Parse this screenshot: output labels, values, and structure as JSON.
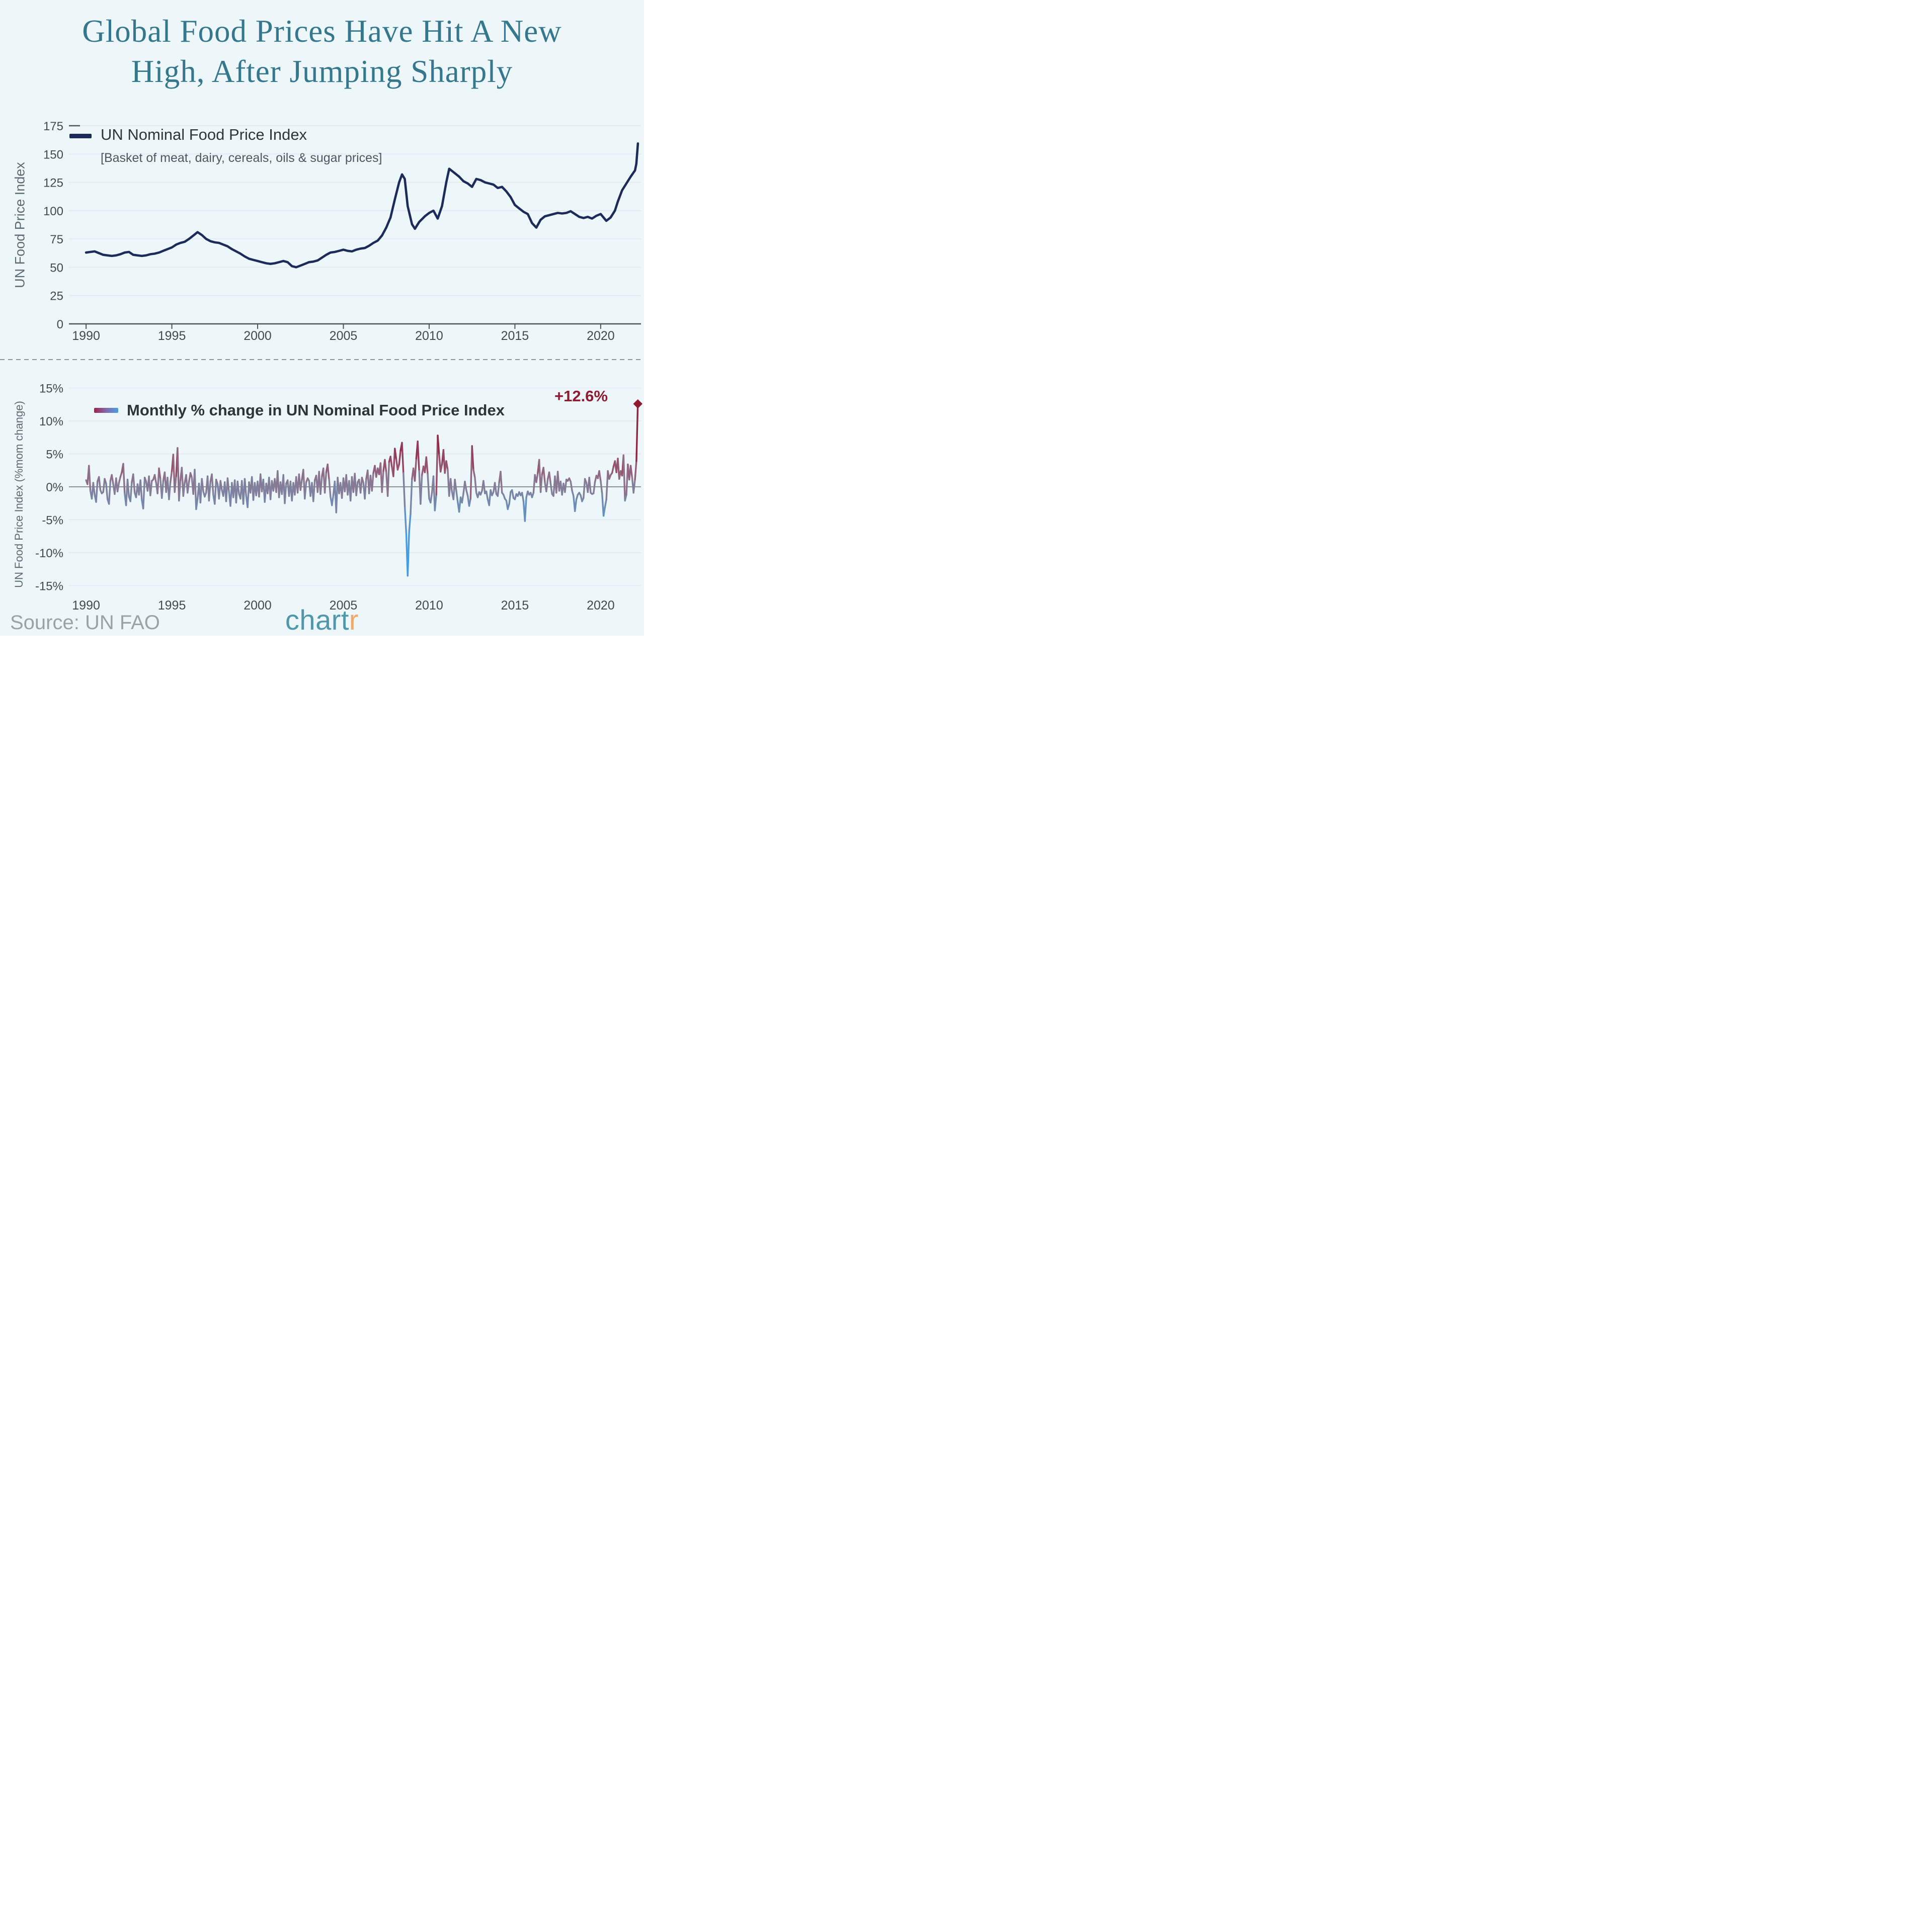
{
  "title": {
    "line1": "Global Food Prices Have Hit A New",
    "line2": "High, After Jumping Sharply",
    "color": "#35778c"
  },
  "footer": {
    "source_label": "Source: UN FAO",
    "logo": {
      "part1": "chart",
      "part2": "r",
      "color1": "#4f97ab",
      "color2": "#f2a868"
    }
  },
  "chart_data": [
    {
      "type": "line",
      "name": "un-nominal-food-price-index",
      "legend": {
        "label": "UN Nominal Food Price Index",
        "sublabel": "[Basket of meat, dairy, cereals, oils & sugar prices]",
        "swatch_color": "#1d2b5a"
      },
      "ylabel": "UN Food Price Index",
      "line_color": "#1d2b5a",
      "xlim": [
        1989.0,
        2022.35
      ],
      "ylim": [
        0,
        175
      ],
      "y_ticks": [
        0,
        25,
        50,
        75,
        100,
        125,
        150,
        175
      ],
      "x_ticks": [
        1990,
        1995,
        2000,
        2005,
        2010,
        2015,
        2020
      ],
      "grid": true,
      "points": [
        [
          1990.0,
          63
        ],
        [
          1990.25,
          63.5
        ],
        [
          1990.5,
          64
        ],
        [
          1990.75,
          62.5
        ],
        [
          1991.0,
          61
        ],
        [
          1991.25,
          60.5
        ],
        [
          1991.5,
          60
        ],
        [
          1991.75,
          60.5
        ],
        [
          1992.0,
          61.5
        ],
        [
          1992.25,
          63
        ],
        [
          1992.5,
          63.5
        ],
        [
          1992.75,
          61
        ],
        [
          1993.0,
          60.5
        ],
        [
          1993.25,
          60
        ],
        [
          1993.5,
          60.5
        ],
        [
          1993.75,
          61.5
        ],
        [
          1994.0,
          62
        ],
        [
          1994.25,
          63
        ],
        [
          1994.5,
          64.5
        ],
        [
          1994.75,
          66
        ],
        [
          1995.0,
          67.5
        ],
        [
          1995.25,
          70
        ],
        [
          1995.5,
          71.5
        ],
        [
          1995.75,
          72.5
        ],
        [
          1996.0,
          75
        ],
        [
          1996.25,
          78
        ],
        [
          1996.5,
          81
        ],
        [
          1996.75,
          78.5
        ],
        [
          1997.0,
          75
        ],
        [
          1997.25,
          73
        ],
        [
          1997.5,
          72
        ],
        [
          1997.75,
          71.5
        ],
        [
          1998.0,
          70
        ],
        [
          1998.25,
          68.5
        ],
        [
          1998.5,
          66
        ],
        [
          1998.75,
          64
        ],
        [
          1999.0,
          62
        ],
        [
          1999.25,
          59.5
        ],
        [
          1999.5,
          57.5
        ],
        [
          1999.75,
          56.5
        ],
        [
          2000.0,
          55.5
        ],
        [
          2000.25,
          54.5
        ],
        [
          2000.5,
          53.5
        ],
        [
          2000.75,
          53
        ],
        [
          2001.0,
          53.5
        ],
        [
          2001.25,
          54.5
        ],
        [
          2001.5,
          55.5
        ],
        [
          2001.75,
          54.5
        ],
        [
          2002.0,
          51
        ],
        [
          2002.25,
          50
        ],
        [
          2002.5,
          51.5
        ],
        [
          2002.75,
          53
        ],
        [
          2003.0,
          54.5
        ],
        [
          2003.25,
          55
        ],
        [
          2003.5,
          56
        ],
        [
          2003.75,
          58.5
        ],
        [
          2004.0,
          61
        ],
        [
          2004.25,
          63
        ],
        [
          2004.5,
          63.5
        ],
        [
          2004.75,
          64.5
        ],
        [
          2005.0,
          65.5
        ],
        [
          2005.25,
          64.5
        ],
        [
          2005.5,
          64
        ],
        [
          2005.75,
          65.5
        ],
        [
          2006.0,
          66.5
        ],
        [
          2006.25,
          67
        ],
        [
          2006.5,
          69
        ],
        [
          2006.75,
          71.5
        ],
        [
          2007.0,
          73.5
        ],
        [
          2007.25,
          78
        ],
        [
          2007.5,
          85
        ],
        [
          2007.75,
          94
        ],
        [
          2008.0,
          110
        ],
        [
          2008.25,
          125
        ],
        [
          2008.42,
          132
        ],
        [
          2008.58,
          128
        ],
        [
          2008.75,
          104
        ],
        [
          2009.0,
          88
        ],
        [
          2009.17,
          84
        ],
        [
          2009.42,
          90
        ],
        [
          2009.75,
          95
        ],
        [
          2010.0,
          98
        ],
        [
          2010.25,
          100
        ],
        [
          2010.5,
          93
        ],
        [
          2010.75,
          104
        ],
        [
          2011.0,
          125
        ],
        [
          2011.17,
          137
        ],
        [
          2011.42,
          134
        ],
        [
          2011.75,
          130
        ],
        [
          2012.0,
          126
        ],
        [
          2012.25,
          124
        ],
        [
          2012.5,
          121
        ],
        [
          2012.75,
          128
        ],
        [
          2013.0,
          127
        ],
        [
          2013.25,
          125
        ],
        [
          2013.5,
          124
        ],
        [
          2013.75,
          123
        ],
        [
          2014.0,
          120
        ],
        [
          2014.25,
          121
        ],
        [
          2014.5,
          117
        ],
        [
          2014.75,
          112
        ],
        [
          2015.0,
          105
        ],
        [
          2015.25,
          102
        ],
        [
          2015.5,
          99
        ],
        [
          2015.75,
          97
        ],
        [
          2016.0,
          89
        ],
        [
          2016.25,
          85
        ],
        [
          2016.5,
          92
        ],
        [
          2016.75,
          95
        ],
        [
          2017.0,
          96
        ],
        [
          2017.25,
          97
        ],
        [
          2017.5,
          98
        ],
        [
          2017.75,
          97.5
        ],
        [
          2018.0,
          98
        ],
        [
          2018.25,
          99.5
        ],
        [
          2018.5,
          97
        ],
        [
          2018.75,
          94.5
        ],
        [
          2019.0,
          93.5
        ],
        [
          2019.25,
          94.5
        ],
        [
          2019.5,
          93
        ],
        [
          2019.75,
          95.5
        ],
        [
          2020.0,
          97
        ],
        [
          2020.33,
          91
        ],
        [
          2020.58,
          94
        ],
        [
          2020.83,
          100
        ],
        [
          2021.0,
          108
        ],
        [
          2021.25,
          118
        ],
        [
          2021.5,
          124
        ],
        [
          2021.75,
          130
        ],
        [
          2022.0,
          135.5
        ],
        [
          2022.08,
          141.4
        ],
        [
          2022.17,
          159.3
        ]
      ]
    },
    {
      "type": "line-gradient",
      "name": "monthly-pct-change",
      "legend": {
        "label": "Monthly % change in UN Nominal Food Price Index"
      },
      "ylabel": "UN Food Price Index (%mom change)",
      "annotation": {
        "text": "+12.6%",
        "color": "#8e1b2f",
        "x": 2022.17,
        "y": 12.6
      },
      "xlim": [
        1989.0,
        2022.35
      ],
      "ylim": [
        -16.5,
        16.5
      ],
      "y_ticks": [
        15,
        10,
        5,
        0,
        -5,
        -10,
        -15
      ],
      "x_ticks": [
        1990,
        1995,
        2000,
        2005,
        2010,
        2015,
        2020
      ],
      "grid": true,
      "zero_line": true,
      "x0": 1990,
      "dx": 0.0833333,
      "color_stops": [
        {
          "v": -14,
          "c": "#35a3ef"
        },
        {
          "v": -8,
          "c": "#4d9ade"
        },
        {
          "v": -4,
          "c": "#6292c4"
        },
        {
          "v": -1.5,
          "c": "#7787a8"
        },
        {
          "v": 0,
          "c": "#847d99"
        },
        {
          "v": 1.5,
          "c": "#8f6f88"
        },
        {
          "v": 3.5,
          "c": "#964d68"
        },
        {
          "v": 6,
          "c": "#8f2b49"
        },
        {
          "v": 13,
          "c": "#881f36"
        }
      ],
      "values": [
        1.0,
        0.4,
        3.2,
        -0.6,
        -1.8,
        0.6,
        -1.2,
        -2.3,
        0.8,
        1.5,
        -0.5,
        -1.0,
        -0.8,
        1.2,
        0.5,
        -1.9,
        -2.6,
        0.9,
        1.8,
        0.4,
        -1.1,
        1.3,
        -0.7,
        0.6,
        1.5,
        2.2,
        3.5,
        -1.0,
        -2.8,
        1.1,
        -1.5,
        -2.2,
        0.7,
        1.9,
        -0.9,
        -1.6,
        0.4,
        -1.2,
        1.0,
        -2.0,
        -3.3,
        1.4,
        0.8,
        -0.6,
        1.6,
        -1.3,
        0.9,
        1.1,
        1.8,
        0.6,
        -1.0,
        2.8,
        1.2,
        -1.7,
        0.9,
        2.2,
        -0.8,
        1.4,
        -1.9,
        0.7,
        2.4,
        4.9,
        -0.8,
        1.6,
        5.9,
        -2.1,
        1.0,
        2.9,
        -1.4,
        0.6,
        1.8,
        -0.9,
        0.8,
        2.1,
        1.4,
        -1.1,
        2.6,
        -3.4,
        -1.8,
        0.5,
        -2.4,
        1.2,
        -0.7,
        -1.5,
        -0.9,
        1.6,
        -2.1,
        0.8,
        1.9,
        -1.2,
        -2.6,
        1.1,
        0.4,
        -1.8,
        0.9,
        -0.5,
        -1.4,
        0.7,
        -2.2,
        1.3,
        -0.8,
        -2.9,
        0.6,
        -1.6,
        1.0,
        -2.4,
        0.8,
        -1.1,
        -1.8,
        0.9,
        -2.6,
        1.2,
        -1.4,
        -3.1,
        0.7,
        -0.9,
        1.5,
        -2.0,
        0.6,
        -1.3,
        0.8,
        -1.5,
        1.9,
        -0.7,
        1.1,
        -2.3,
        0.5,
        -1.0,
        1.4,
        -1.9,
        0.9,
        -0.6,
        1.2,
        -0.8,
        2.4,
        -1.6,
        0.7,
        -1.1,
        1.8,
        -2.5,
        0.5,
        1.0,
        -1.4,
        0.8,
        -2.1,
        0.6,
        -1.2,
        1.5,
        -0.9,
        1.9,
        -0.5,
        1.1,
        2.6,
        -1.8,
        0.7,
        1.3,
        0.9,
        -1.4,
        0.6,
        -2.2,
        1.0,
        1.7,
        -0.8,
        2.3,
        -1.1,
        1.6,
        2.8,
        -0.9,
        2.2,
        3.4,
        1.1,
        -1.5,
        -2.8,
        -1.2,
        0.8,
        -3.9,
        1.4,
        -1.0,
        0.6,
        -1.7,
        1.3,
        -0.7,
        1.8,
        -1.2,
        0.9,
        -2.1,
        1.5,
        -0.8,
        2.0,
        -1.3,
        0.7,
        1.1,
        -0.9,
        1.4,
        0.6,
        -1.8,
        1.2,
        2.5,
        -1.0,
        1.7,
        -0.6,
        2.1,
        3.2,
        1.5,
        2.8,
        1.9,
        3.6,
        -0.8,
        2.4,
        4.1,
        2.2,
        -1.4,
        3.8,
        4.6,
        2.9,
        1.6,
        5.8,
        4.2,
        2.6,
        3.4,
        5.5,
        6.7,
        2.1,
        -3.2,
        -7.2,
        -13.5,
        -6.8,
        -4.1,
        1.2,
        2.8,
        0.9,
        4.3,
        6.9,
        2.4,
        -2.6,
        1.8,
        3.1,
        2.2,
        4.5,
        1.9,
        -1.8,
        -2.4,
        -0.9,
        1.6,
        -3.6,
        -1.2,
        7.8,
        4.9,
        2.3,
        3.4,
        5.6,
        2.1,
        3.9,
        2.6,
        -1.4,
        1.2,
        -0.8,
        -1.9,
        1.1,
        -0.6,
        -2.3,
        -3.8,
        -1.6,
        -2.4,
        -1.0,
        0.8,
        -0.5,
        -1.4,
        -2.9,
        -1.8,
        6.2,
        2.6,
        1.4,
        -0.9,
        -1.6,
        -0.8,
        -1.2,
        -0.6,
        0.9,
        -1.0,
        -0.7,
        -1.9,
        -2.8,
        -0.5,
        -1.3,
        -0.8,
        0.6,
        -1.1,
        -1.4,
        0.7,
        2.3,
        -0.9,
        -1.2,
        -1.8,
        -2.1,
        -3.4,
        -2.6,
        -0.8,
        -0.5,
        -1.7,
        -1.9,
        -1.1,
        -1.4,
        -0.8,
        -1.3,
        -0.9,
        -2.2,
        -5.2,
        -1.6,
        -0.7,
        -1.2,
        -0.9,
        -1.6,
        -0.9,
        1.8,
        0.7,
        2.1,
        4.1,
        -0.8,
        1.9,
        2.9,
        0.6,
        -0.7,
        1.2,
        2.2,
        0.5,
        -1.1,
        -1.4,
        1.6,
        -0.9,
        2.3,
        -0.6,
        0.8,
        -1.2,
        0.5,
        -0.8,
        1.1,
        0.9,
        1.3,
        0.8,
        -0.6,
        -1.4,
        -3.7,
        -1.9,
        -1.2,
        -0.9,
        -1.3,
        -2.2,
        -1.7,
        1.2,
        0.6,
        -0.8,
        1.4,
        -0.9,
        -1.1,
        -1.0,
        0.7,
        1.7,
        1.3,
        2.4,
        0.9,
        -1.0,
        -4.4,
        -3.1,
        -1.9,
        2.4,
        1.2,
        1.8,
        2.1,
        3.1,
        3.9,
        2.2,
        4.3,
        1.2,
        2.4,
        1.7,
        4.8,
        -2.1,
        -1.2,
        3.4,
        1.1,
        3.2,
        1.4,
        -0.9,
        1.1,
        3.9,
        12.6
      ]
    }
  ]
}
